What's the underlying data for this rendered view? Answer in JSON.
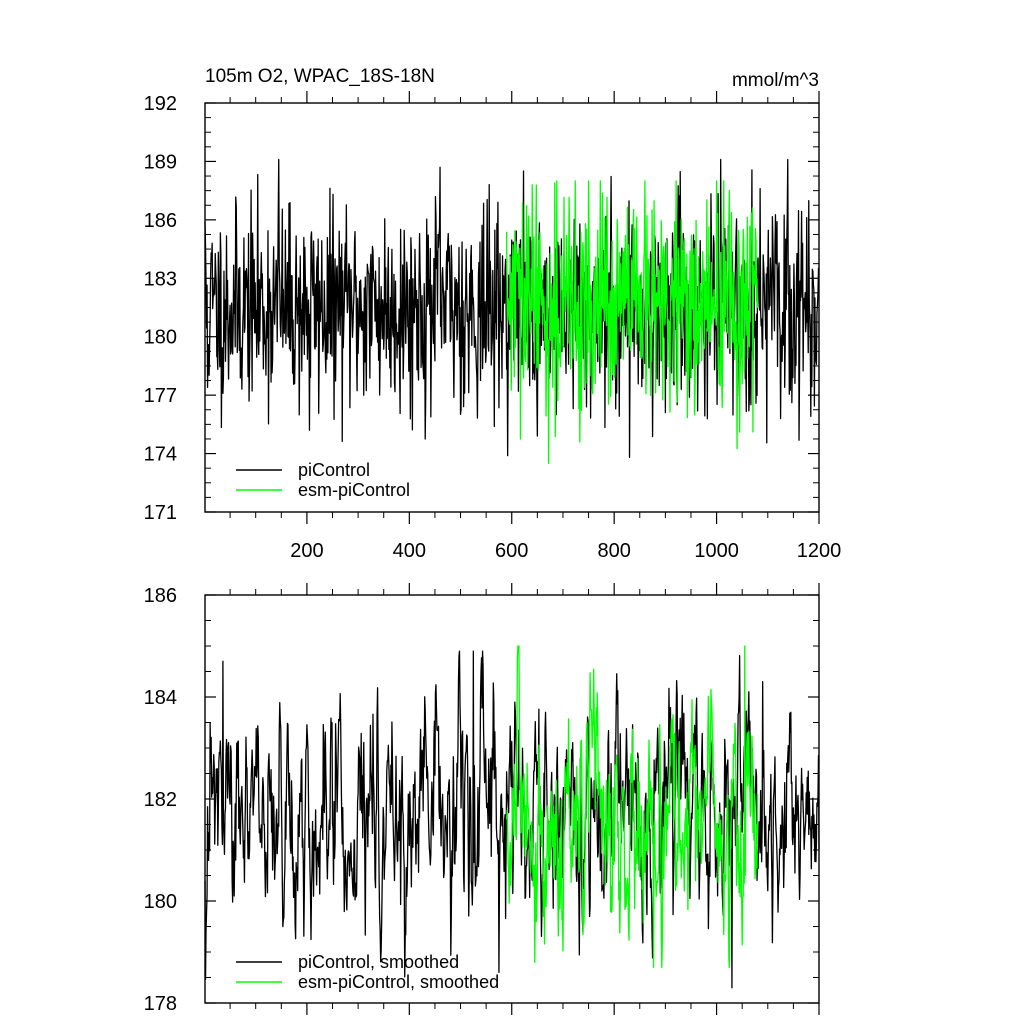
{
  "chart_data": [
    {
      "type": "line",
      "title": "105m O2, WPAC_18S-18N",
      "units": "mmol/m^3",
      "xlim": [
        1,
        1200
      ],
      "ylim": [
        171,
        192
      ],
      "yticks": [
        171,
        174,
        177,
        180,
        183,
        186,
        189,
        192
      ],
      "xticks": [
        200,
        400,
        600,
        800,
        1000,
        1200
      ],
      "xtick_labels": [
        "200",
        "400",
        "600",
        "800",
        "1000",
        "1200"
      ],
      "legend_position": "bottom-left",
      "series": [
        {
          "name": "piControl",
          "color": "#000000",
          "x_start": 1,
          "x_end": 1200,
          "mean": 181.5,
          "std": 2.5,
          "min": 173.8,
          "max": 189.1,
          "seed": 11,
          "ar": 0.05,
          "anchors": [
            [
              1,
              185.9
            ],
            [
              6,
              177.4
            ],
            [
              145,
              189.1
            ],
            [
              205,
              175.2
            ],
            [
              460,
              188.7
            ],
            [
              650,
              174.9
            ],
            [
              830,
              173.8
            ],
            [
              1085,
              187.6
            ]
          ]
        },
        {
          "name": "esm-piControl",
          "color": "#00ff00",
          "x_start": 590,
          "x_end": 1080,
          "mean": 181.6,
          "std": 2.7,
          "min": 173.5,
          "max": 188.0,
          "seed": 29,
          "ar": 0.05,
          "anchors": [
            [
              640,
              187.8
            ],
            [
              672,
              173.5
            ],
            [
              1000,
              188.0
            ],
            [
              1045,
              175.1
            ]
          ]
        }
      ]
    },
    {
      "type": "line",
      "title": "",
      "units": "",
      "xlim": [
        1,
        1200
      ],
      "ylim": [
        178,
        186
      ],
      "yticks": [
        178,
        180,
        182,
        184,
        186
      ],
      "xticks": [
        200,
        400,
        600,
        800,
        1000,
        1200
      ],
      "xtick_labels": [
        "",
        "",
        "",
        "",
        "",
        ""
      ],
      "legend_position": "bottom-left",
      "series": [
        {
          "name": "piControl, smoothed",
          "color": "#000000",
          "x_start": 1,
          "x_end": 1200,
          "mean": 181.6,
          "std": 1.05,
          "min": 178.3,
          "max": 184.9,
          "seed": 47,
          "ar": 0.72,
          "anchors": [
            [
              1,
              180.4
            ],
            [
              36,
              184.7
            ],
            [
              525,
              184.9
            ],
            [
              575,
              178.6
            ],
            [
              1030,
              178.3
            ],
            [
              1090,
              184.3
            ]
          ]
        },
        {
          "name": "esm-piControl, smoothed",
          "color": "#00ff00",
          "x_start": 590,
          "x_end": 1080,
          "mean": 181.5,
          "std": 1.15,
          "min": 178.7,
          "max": 185.0,
          "seed": 83,
          "ar": 0.72,
          "anchors": [
            [
              590,
              181.6
            ],
            [
              645,
              178.8
            ],
            [
              877,
              178.7
            ],
            [
              1055,
              185.0
            ],
            [
              1078,
              181.5
            ]
          ]
        }
      ]
    }
  ]
}
